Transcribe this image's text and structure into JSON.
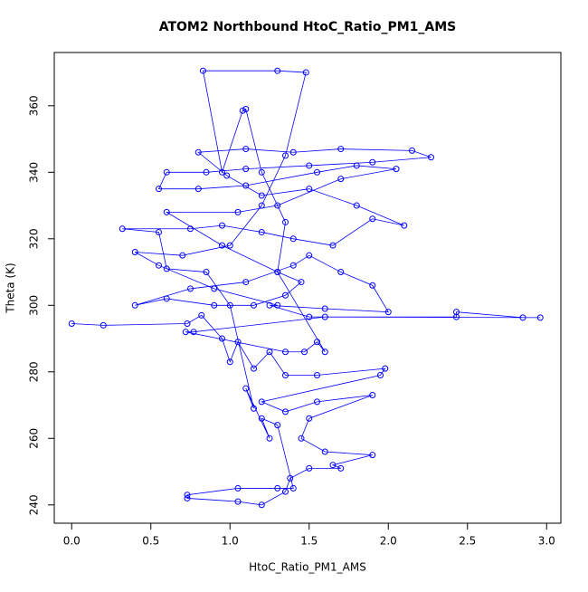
{
  "chart_data": {
    "type": "scatter",
    "lines": true,
    "title": "ATOM2 Northbound HtoC_Ratio_PM1_AMS",
    "x_label": "HtoC_Ratio_PM1_AMS",
    "y_label": "Theta (K)",
    "color": "#0000ff",
    "xlim": [
      -0.11,
      3.09
    ],
    "ylim": [
      234.5,
      376
    ],
    "xticks": [
      {
        "value": 0,
        "label": "0.0"
      },
      0.5,
      {
        "value": 1,
        "label": "1.0"
      },
      1.5,
      {
        "value": 2,
        "label": "2.0"
      },
      2.5,
      {
        "value": 3,
        "label": "3.0"
      }
    ],
    "yticks": [
      240,
      260,
      280,
      300,
      320,
      340,
      360
    ],
    "x": [
      0.0,
      0.2,
      0.73,
      0.82,
      0.95,
      1.0,
      1.05,
      1.15,
      1.25,
      1.35,
      1.55,
      1.98,
      1.95,
      1.2,
      1.35,
      1.55,
      1.9,
      1.5,
      1.45,
      1.6,
      1.9,
      1.65,
      1.7,
      1.5,
      1.38,
      1.35,
      1.2,
      1.05,
      0.73,
      0.73,
      1.05,
      1.3,
      1.4,
      1.3,
      1.2,
      1.25,
      1.1,
      1.15,
      1.0,
      0.85,
      0.6,
      0.55,
      0.32,
      0.75,
      0.95,
      1.2,
      1.4,
      1.65,
      1.9,
      2.1,
      1.8,
      1.5,
      1.2,
      0.98,
      0.8,
      1.1,
      1.4,
      1.7,
      2.15,
      2.27,
      1.9,
      1.5,
      1.1,
      0.85,
      0.6,
      0.55,
      0.8,
      1.1,
      1.55,
      1.8,
      2.05,
      1.7,
      1.3,
      1.05,
      0.6,
      0.95,
      1.3,
      1.45,
      1.35,
      1.15,
      0.9,
      0.6,
      0.4,
      0.75,
      1.1,
      1.4,
      1.5,
      1.7,
      1.9,
      2.0,
      1.6,
      1.25,
      1.5,
      2.43,
      2.43,
      2.85,
      2.96,
      1.6,
      0.77,
      0.72,
      1.35,
      1.47,
      1.55,
      1.6,
      1.3,
      1.35,
      1.2,
      1.1,
      1.08,
      0.95,
      0.83,
      1.3,
      1.48,
      1.35,
      1.2,
      1.0,
      0.7,
      0.4,
      0.55,
      0.9,
      1.3
    ],
    "values": [
      294.5,
      294,
      294.5,
      297,
      290,
      283,
      289,
      281,
      286,
      279,
      279,
      281,
      279,
      271,
      268,
      271,
      273,
      266,
      260,
      256,
      255,
      252,
      251,
      251,
      248,
      244,
      240,
      241,
      242,
      243,
      245,
      245,
      245,
      264,
      266,
      260,
      275,
      269,
      300,
      310,
      311,
      322,
      323,
      323,
      324,
      322,
      320,
      318,
      326,
      324,
      330,
      335,
      333,
      339,
      346,
      347,
      346,
      347,
      346.5,
      344.5,
      343,
      342,
      341,
      340,
      340,
      335,
      335,
      336,
      340,
      342,
      341,
      338,
      330,
      328,
      328,
      318,
      310,
      307,
      303,
      300,
      300,
      302,
      300,
      305,
      307,
      312,
      315,
      310,
      306,
      298,
      299,
      300,
      296.5,
      296.5,
      298,
      296.3,
      296.3,
      296.5,
      292,
      292,
      286,
      286,
      289,
      286,
      310,
      325,
      340,
      359,
      358.5,
      340,
      370.5,
      370.5,
      370,
      345,
      330,
      318,
      315,
      316,
      312,
      305,
      300
    ]
  }
}
